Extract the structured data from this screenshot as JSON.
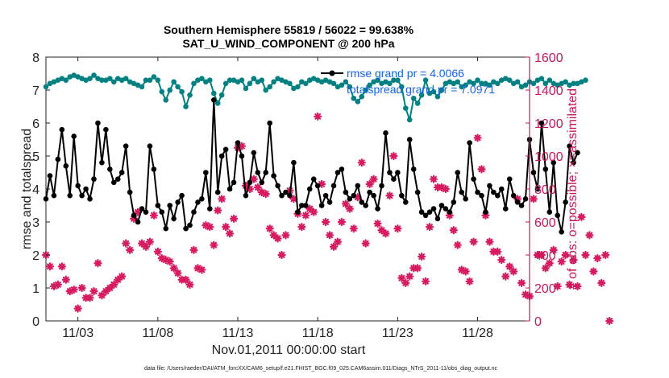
{
  "colors": {
    "rmse": "#000000",
    "totalspread": "#008080",
    "obs": "#d81b60",
    "legend_text": "#1565e0",
    "right_axis": "#c2185b"
  },
  "chart_data": {
    "type": "line",
    "title": "Southern Hemisphere 55819 / 56022 = 99.638%",
    "subtitle": "SAT_U_WIND_COMPONENT @ 200 hPa",
    "xlabel": "Nov.01,2011 00:00:00 start",
    "ylabel_left": "rmse and totalspread",
    "ylabel_right": "# of obs: o=possible; ×=assimilated",
    "ylim_left": [
      0,
      8
    ],
    "ylim_right": [
      0,
      1600
    ],
    "yticks_left": [
      "0",
      "1",
      "2",
      "3",
      "4",
      "5",
      "6",
      "7",
      "8"
    ],
    "yticks_right": [
      "0",
      "200",
      "400",
      "600",
      "800",
      "1000",
      "1200",
      "1400",
      "1600"
    ],
    "xlim_days": [
      1.0,
      31.25
    ],
    "xtick_days": [
      3,
      8,
      13,
      18,
      23,
      28
    ],
    "xtick_labels": [
      "11/03",
      "11/08",
      "11/13",
      "11/18",
      "11/23",
      "11/28"
    ],
    "grid": false,
    "legend": {
      "placement": "top-center",
      "entries": [
        "rmse grand pr = 4.0066",
        "totalspread grand pr = 7.0971"
      ]
    },
    "x_start_day": 1.0,
    "x_step_days": 0.25,
    "series": [
      {
        "name": "rmse grand pr = 4.0066",
        "axis": "left",
        "values": [
          3.7,
          4.4,
          3.8,
          4.9,
          5.8,
          4.7,
          3.8,
          5.6,
          4.1,
          3.8,
          4.0,
          3.7,
          4.3,
          6.0,
          4.8,
          5.8,
          4.6,
          4.2,
          4.3,
          4.5,
          5.3,
          3.9,
          3.2,
          3.0,
          3.4,
          3.3,
          5.3,
          4.6,
          3.5,
          3.3,
          2.8,
          3.5,
          3.1,
          3.6,
          3.8,
          2.8,
          2.9,
          3.3,
          3.6,
          3.7,
          4.5,
          3.4,
          6.7,
          3.9,
          5.0,
          5.2,
          4.0,
          4.2,
          5.4,
          5.0,
          3.8,
          4.2,
          5.1,
          4.5,
          4.2,
          4.5,
          6.0,
          4.4,
          4.1,
          3.8,
          3.9,
          3.8,
          4.8,
          3.3,
          3.5,
          3.5,
          4.0,
          4.3,
          4.1,
          3.5,
          3.8,
          3.6,
          4.1,
          4.5,
          4.6,
          3.9,
          3.7,
          3.8,
          4.1,
          3.6,
          3.5,
          3.9,
          3.8,
          3.4,
          4.1,
          5.7,
          4.5,
          4.3,
          4.5,
          3.8,
          3.6,
          5.5,
          4.6,
          3.9,
          3.3,
          3.2,
          3.3,
          3.4,
          3.1,
          3.5,
          3.4,
          3.3,
          3.6,
          4.5,
          3.9,
          3.7,
          5.4,
          4.3,
          3.9,
          3.8,
          3.3,
          4.1,
          3.9,
          3.8,
          4.0,
          3.4,
          4.3,
          3.8,
          3.6,
          3.5,
          3.7,
          5.5,
          4.5,
          4.0,
          6.0,
          4.6,
          3.3,
          4.8,
          3.2,
          2.7,
          3.6,
          5.3,
          4.8,
          5.1
        ]
      },
      {
        "name": "totalspread grand pr = 7.0971",
        "axis": "left",
        "values": [
          7.1,
          7.2,
          7.25,
          7.3,
          7.35,
          7.3,
          7.4,
          7.45,
          7.4,
          7.35,
          7.3,
          7.35,
          7.45,
          7.35,
          7.3,
          7.3,
          7.35,
          7.25,
          7.35,
          7.3,
          7.35,
          7.25,
          7.2,
          7.15,
          7.1,
          7.3,
          7.3,
          7.4,
          7.3,
          6.95,
          6.7,
          7.0,
          7.25,
          7.1,
          6.95,
          6.5,
          6.85,
          7.2,
          7.3,
          7.35,
          7.25,
          7.3,
          6.9,
          6.6,
          6.85,
          7.2,
          7.3,
          7.3,
          7.25,
          7.3,
          7.05,
          7.2,
          7.35,
          7.25,
          7.3,
          7.0,
          7.1,
          7.25,
          7.35,
          7.3,
          7.25,
          7.2,
          7.05,
          7.1,
          7.25,
          7.2,
          7.3,
          7.35,
          7.3,
          7.25,
          7.3,
          7.25,
          7.2,
          7.1,
          7.15,
          7.25,
          7.1,
          6.75,
          6.65,
          6.8,
          7.0,
          7.15,
          7.25,
          7.3,
          7.2,
          7.25,
          7.2,
          7.3,
          7.3,
          7.1,
          6.45,
          6.1,
          6.75,
          6.6,
          6.85,
          7.3,
          6.9,
          6.95,
          6.8,
          7.0,
          7.2,
          7.25,
          7.2,
          7.25,
          7.1,
          7.15,
          7.25,
          7.2,
          7.3,
          7.2,
          7.2,
          7.15,
          7.25,
          7.2,
          7.3,
          7.35,
          7.3,
          7.2,
          7.25,
          7.1,
          7.15,
          7.25,
          7.2,
          7.3,
          7.35,
          7.2,
          7.3,
          7.2,
          7.15,
          7.2,
          7.25,
          7.15,
          7.2,
          7.2,
          7.25,
          7.3
        ]
      },
      {
        "name": "# of obs assimilated",
        "axis": "right",
        "values": [
          400,
          330,
          210,
          220,
          330,
          250,
          180,
          190,
          75,
          200,
          140,
          140,
          180,
          350,
          155,
          180,
          200,
          220,
          250,
          270,
          470,
          430,
          620,
          660,
          470,
          450,
          480,
          640,
          420,
          380,
          370,
          360,
          320,
          290,
          250,
          250,
          220,
          430,
          320,
          310,
          580,
          570,
          460,
          670,
          740,
          570,
          530,
          620,
          1050,
          1060,
          820,
          800,
          860,
          810,
          780,
          770,
          560,
          520,
          500,
          400,
          520,
          790,
          740,
          650,
          570,
          640,
          680,
          660,
          1240,
          830,
          600,
          520,
          450,
          480,
          600,
          710,
          680,
          560,
          750,
          960,
          470,
          830,
          860,
          590,
          550,
          530,
          760,
          1000,
          560,
          260,
          230,
          270,
          320,
          320,
          390,
          240,
          570,
          860,
          810,
          810,
          800,
          640,
          550,
          460,
          310,
          300,
          240,
          480,
          1110,
          920,
          640,
          480,
          420,
          420,
          370,
          270,
          330,
          300,
          740,
          230,
          160,
          150,
          740,
          400,
          400,
          320,
          350,
          430,
          210,
          360,
          400,
          220,
          370,
          210,
          630,
          400,
          520,
          300,
          380,
          230,
          400,
          0
        ]
      }
    ]
  },
  "footer": "data file: /Users/raeder/DAI/ATM_forcXX/CAM6_setup/f.e21.FHIST_BGC.f09_025.CAM6assim.011/Diags_NTrS_2011-11/obs_diag_output.nc"
}
